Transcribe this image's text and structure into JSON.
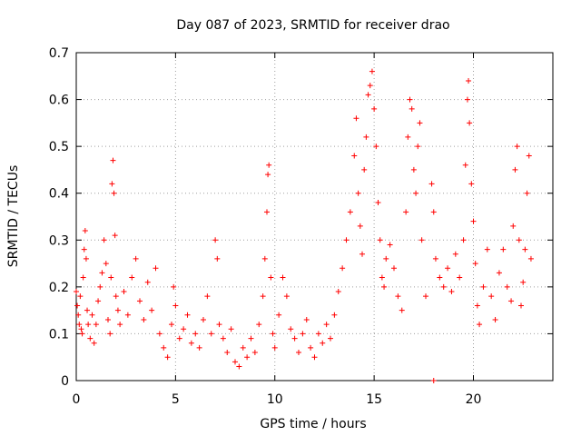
{
  "chart_data": {
    "type": "scatter",
    "title": "Day 087 of 2023, SRMTID for receiver drao",
    "xlabel": "GPS time / hours",
    "ylabel": "SRMTID / TECUs",
    "xlim": [
      0,
      24
    ],
    "ylim": [
      0,
      0.7
    ],
    "xticks": [
      0,
      5,
      10,
      15,
      20
    ],
    "yticks": [
      0,
      0.1,
      0.2,
      0.3,
      0.4,
      0.5,
      0.6,
      0.7
    ],
    "xtick_labels": [
      "0",
      "5",
      "10",
      "15",
      "20"
    ],
    "ytick_labels": [
      "0",
      "0.1",
      "0.2",
      "0.3",
      "0.4",
      "0.5",
      "0.6",
      "0.7"
    ],
    "grid": true,
    "marker": "+",
    "color": "#ff0000",
    "series": [
      {
        "name": "SRMTID",
        "points": [
          [
            0.0,
            0.19
          ],
          [
            0.05,
            0.16
          ],
          [
            0.1,
            0.14
          ],
          [
            0.15,
            0.12
          ],
          [
            0.2,
            0.18
          ],
          [
            0.25,
            0.11
          ],
          [
            0.3,
            0.1
          ],
          [
            0.35,
            0.22
          ],
          [
            0.4,
            0.28
          ],
          [
            0.45,
            0.32
          ],
          [
            0.5,
            0.26
          ],
          [
            0.55,
            0.15
          ],
          [
            0.6,
            0.12
          ],
          [
            0.7,
            0.09
          ],
          [
            0.8,
            0.14
          ],
          [
            0.9,
            0.08
          ],
          [
            1.0,
            0.12
          ],
          [
            1.1,
            0.17
          ],
          [
            1.2,
            0.2
          ],
          [
            1.3,
            0.23
          ],
          [
            1.4,
            0.3
          ],
          [
            1.5,
            0.25
          ],
          [
            1.6,
            0.13
          ],
          [
            1.7,
            0.1
          ],
          [
            1.75,
            0.22
          ],
          [
            1.8,
            0.42
          ],
          [
            1.85,
            0.47
          ],
          [
            1.9,
            0.4
          ],
          [
            1.95,
            0.31
          ],
          [
            2.0,
            0.18
          ],
          [
            2.1,
            0.15
          ],
          [
            2.2,
            0.12
          ],
          [
            2.4,
            0.19
          ],
          [
            2.6,
            0.14
          ],
          [
            2.8,
            0.22
          ],
          [
            3.0,
            0.26
          ],
          [
            3.2,
            0.17
          ],
          [
            3.4,
            0.13
          ],
          [
            3.6,
            0.21
          ],
          [
            3.8,
            0.15
          ],
          [
            4.0,
            0.24
          ],
          [
            4.2,
            0.1
          ],
          [
            4.4,
            0.07
          ],
          [
            4.6,
            0.05
          ],
          [
            4.8,
            0.12
          ],
          [
            4.9,
            0.2
          ],
          [
            5.0,
            0.16
          ],
          [
            5.2,
            0.09
          ],
          [
            5.4,
            0.11
          ],
          [
            5.6,
            0.14
          ],
          [
            5.8,
            0.08
          ],
          [
            6.0,
            0.1
          ],
          [
            6.2,
            0.07
          ],
          [
            6.4,
            0.13
          ],
          [
            6.6,
            0.18
          ],
          [
            6.8,
            0.1
          ],
          [
            7.0,
            0.3
          ],
          [
            7.1,
            0.26
          ],
          [
            7.2,
            0.12
          ],
          [
            7.4,
            0.09
          ],
          [
            7.6,
            0.06
          ],
          [
            7.8,
            0.11
          ],
          [
            8.0,
            0.04
          ],
          [
            8.2,
            0.03
          ],
          [
            8.4,
            0.07
          ],
          [
            8.6,
            0.05
          ],
          [
            8.8,
            0.09
          ],
          [
            9.0,
            0.06
          ],
          [
            9.2,
            0.12
          ],
          [
            9.4,
            0.18
          ],
          [
            9.5,
            0.26
          ],
          [
            9.6,
            0.36
          ],
          [
            9.65,
            0.44
          ],
          [
            9.7,
            0.46
          ],
          [
            9.8,
            0.22
          ],
          [
            9.9,
            0.1
          ],
          [
            10.0,
            0.07
          ],
          [
            10.2,
            0.14
          ],
          [
            10.4,
            0.22
          ],
          [
            10.6,
            0.18
          ],
          [
            10.8,
            0.11
          ],
          [
            11.0,
            0.09
          ],
          [
            11.2,
            0.06
          ],
          [
            11.4,
            0.1
          ],
          [
            11.6,
            0.13
          ],
          [
            11.8,
            0.07
          ],
          [
            12.0,
            0.05
          ],
          [
            12.2,
            0.1
          ],
          [
            12.4,
            0.08
          ],
          [
            12.6,
            0.12
          ],
          [
            12.8,
            0.09
          ],
          [
            13.0,
            0.14
          ],
          [
            13.2,
            0.19
          ],
          [
            13.4,
            0.24
          ],
          [
            13.6,
            0.3
          ],
          [
            13.8,
            0.36
          ],
          [
            14.0,
            0.48
          ],
          [
            14.1,
            0.56
          ],
          [
            14.2,
            0.4
          ],
          [
            14.3,
            0.33
          ],
          [
            14.4,
            0.27
          ],
          [
            14.5,
            0.45
          ],
          [
            14.6,
            0.52
          ],
          [
            14.7,
            0.61
          ],
          [
            14.8,
            0.63
          ],
          [
            14.9,
            0.66
          ],
          [
            15.0,
            0.58
          ],
          [
            15.1,
            0.5
          ],
          [
            15.2,
            0.38
          ],
          [
            15.3,
            0.3
          ],
          [
            15.4,
            0.22
          ],
          [
            15.5,
            0.2
          ],
          [
            15.6,
            0.26
          ],
          [
            15.8,
            0.29
          ],
          [
            16.0,
            0.24
          ],
          [
            16.2,
            0.18
          ],
          [
            16.4,
            0.15
          ],
          [
            16.6,
            0.36
          ],
          [
            16.7,
            0.52
          ],
          [
            16.8,
            0.6
          ],
          [
            16.9,
            0.58
          ],
          [
            17.0,
            0.45
          ],
          [
            17.1,
            0.4
          ],
          [
            17.2,
            0.5
          ],
          [
            17.3,
            0.55
          ],
          [
            17.4,
            0.3
          ],
          [
            17.6,
            0.18
          ],
          [
            17.9,
            0.42
          ],
          [
            18.0,
            0.36
          ],
          [
            18.1,
            0.26
          ],
          [
            18.3,
            0.22
          ],
          [
            18.5,
            0.2
          ],
          [
            18.7,
            0.24
          ],
          [
            18.9,
            0.19
          ],
          [
            19.1,
            0.27
          ],
          [
            19.3,
            0.22
          ],
          [
            19.5,
            0.3
          ],
          [
            19.6,
            0.46
          ],
          [
            19.7,
            0.6
          ],
          [
            19.75,
            0.64
          ],
          [
            19.8,
            0.55
          ],
          [
            19.9,
            0.42
          ],
          [
            20.0,
            0.34
          ],
          [
            20.1,
            0.25
          ],
          [
            20.2,
            0.16
          ],
          [
            20.3,
            0.12
          ],
          [
            20.5,
            0.2
          ],
          [
            20.7,
            0.28
          ],
          [
            20.9,
            0.18
          ],
          [
            21.1,
            0.13
          ],
          [
            21.3,
            0.23
          ],
          [
            21.5,
            0.28
          ],
          [
            21.7,
            0.2
          ],
          [
            21.9,
            0.17
          ],
          [
            22.0,
            0.33
          ],
          [
            22.1,
            0.45
          ],
          [
            22.2,
            0.5
          ],
          [
            22.3,
            0.3
          ],
          [
            22.4,
            0.16
          ],
          [
            22.5,
            0.21
          ],
          [
            22.6,
            0.28
          ],
          [
            22.7,
            0.4
          ],
          [
            22.8,
            0.48
          ],
          [
            22.9,
            0.26
          ],
          [
            18.0,
            0.0
          ]
        ]
      }
    ]
  }
}
